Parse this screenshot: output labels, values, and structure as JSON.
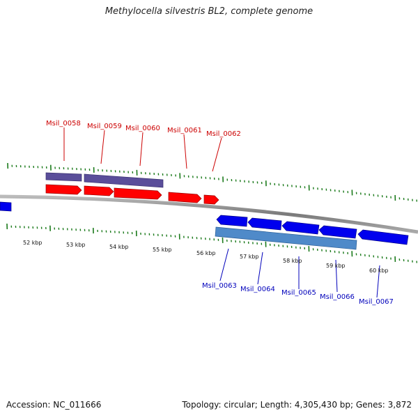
{
  "title": "Methylocella silvestris BL2, complete genome",
  "footer": {
    "accession": "Accession: NC_011666",
    "summary": "Topology: circular; Length: 4,305,430 bp; Genes: 3,872"
  },
  "colors": {
    "forward": "#ff0000",
    "reverse": "#0000ee",
    "forward_label": "#cc0000",
    "reverse_label": "#0000bb",
    "tick": "#1b7a1b",
    "backbone": "#888888",
    "forward_feature_band": "#5a4e9a",
    "reverse_feature_band": "#4f8ac9"
  },
  "scale_labels": [
    "52 kbp",
    "53 kbp",
    "54 kbp",
    "55 kbp",
    "56 kbp",
    "57 kbp",
    "58 kbp",
    "59 kbp",
    "60 kbp"
  ],
  "forward_genes": [
    "Msil_0058",
    "Msil_0059",
    "Msil_0060",
    "Msil_0061",
    "Msil_0062"
  ],
  "reverse_genes": [
    "Msil_0063",
    "Msil_0064",
    "Msil_0065",
    "Msil_0066",
    "Msil_0067"
  ]
}
